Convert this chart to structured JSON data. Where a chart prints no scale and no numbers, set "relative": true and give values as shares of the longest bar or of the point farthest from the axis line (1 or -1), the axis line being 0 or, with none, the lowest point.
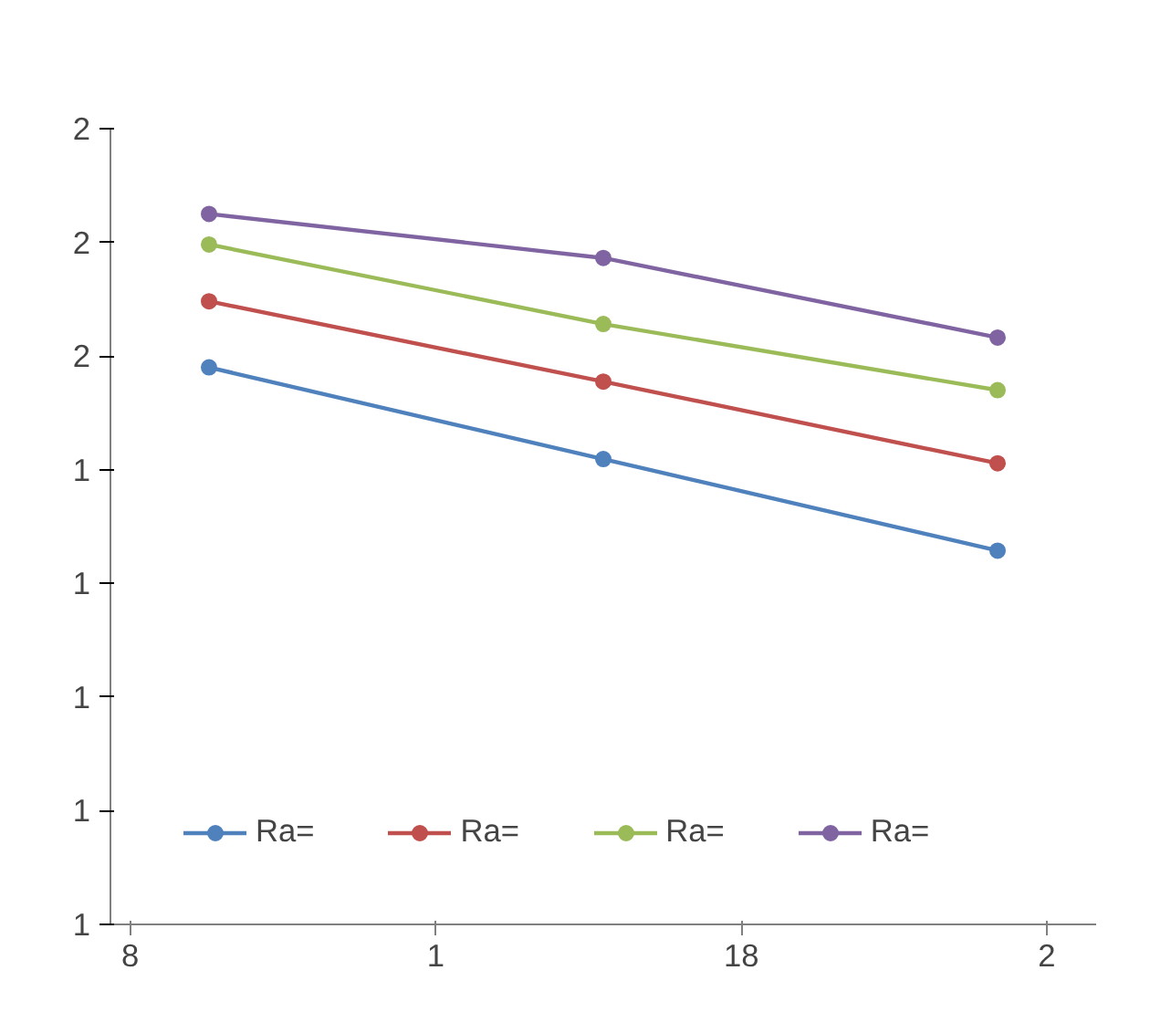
{
  "chart_data": {
    "type": "line",
    "categories": [
      null,
      null,
      null
    ],
    "relative": true,
    "series": [
      {
        "name": "Ra=",
        "color": "#4f81bd",
        "values": [
          0.784,
          0.655,
          0.526
        ]
      },
      {
        "name": "Ra=",
        "color": "#c0504d",
        "values": [
          0.877,
          0.764,
          0.649
        ]
      },
      {
        "name": "Ra=",
        "color": "#9bbb59",
        "values": [
          0.957,
          0.845,
          0.752
        ]
      },
      {
        "name": "Ra=",
        "color": "#8064a2",
        "values": [
          1,
          0.938,
          0.826
        ]
      }
    ],
    "annotations": [
      "8",
      "1",
      "18",
      "2",
      "1",
      "1",
      "1",
      "1",
      "1",
      "2",
      "2",
      "2"
    ],
    "grid": false,
    "legend": "bottom",
    "marker": "circle",
    "line_style": "solid"
  }
}
